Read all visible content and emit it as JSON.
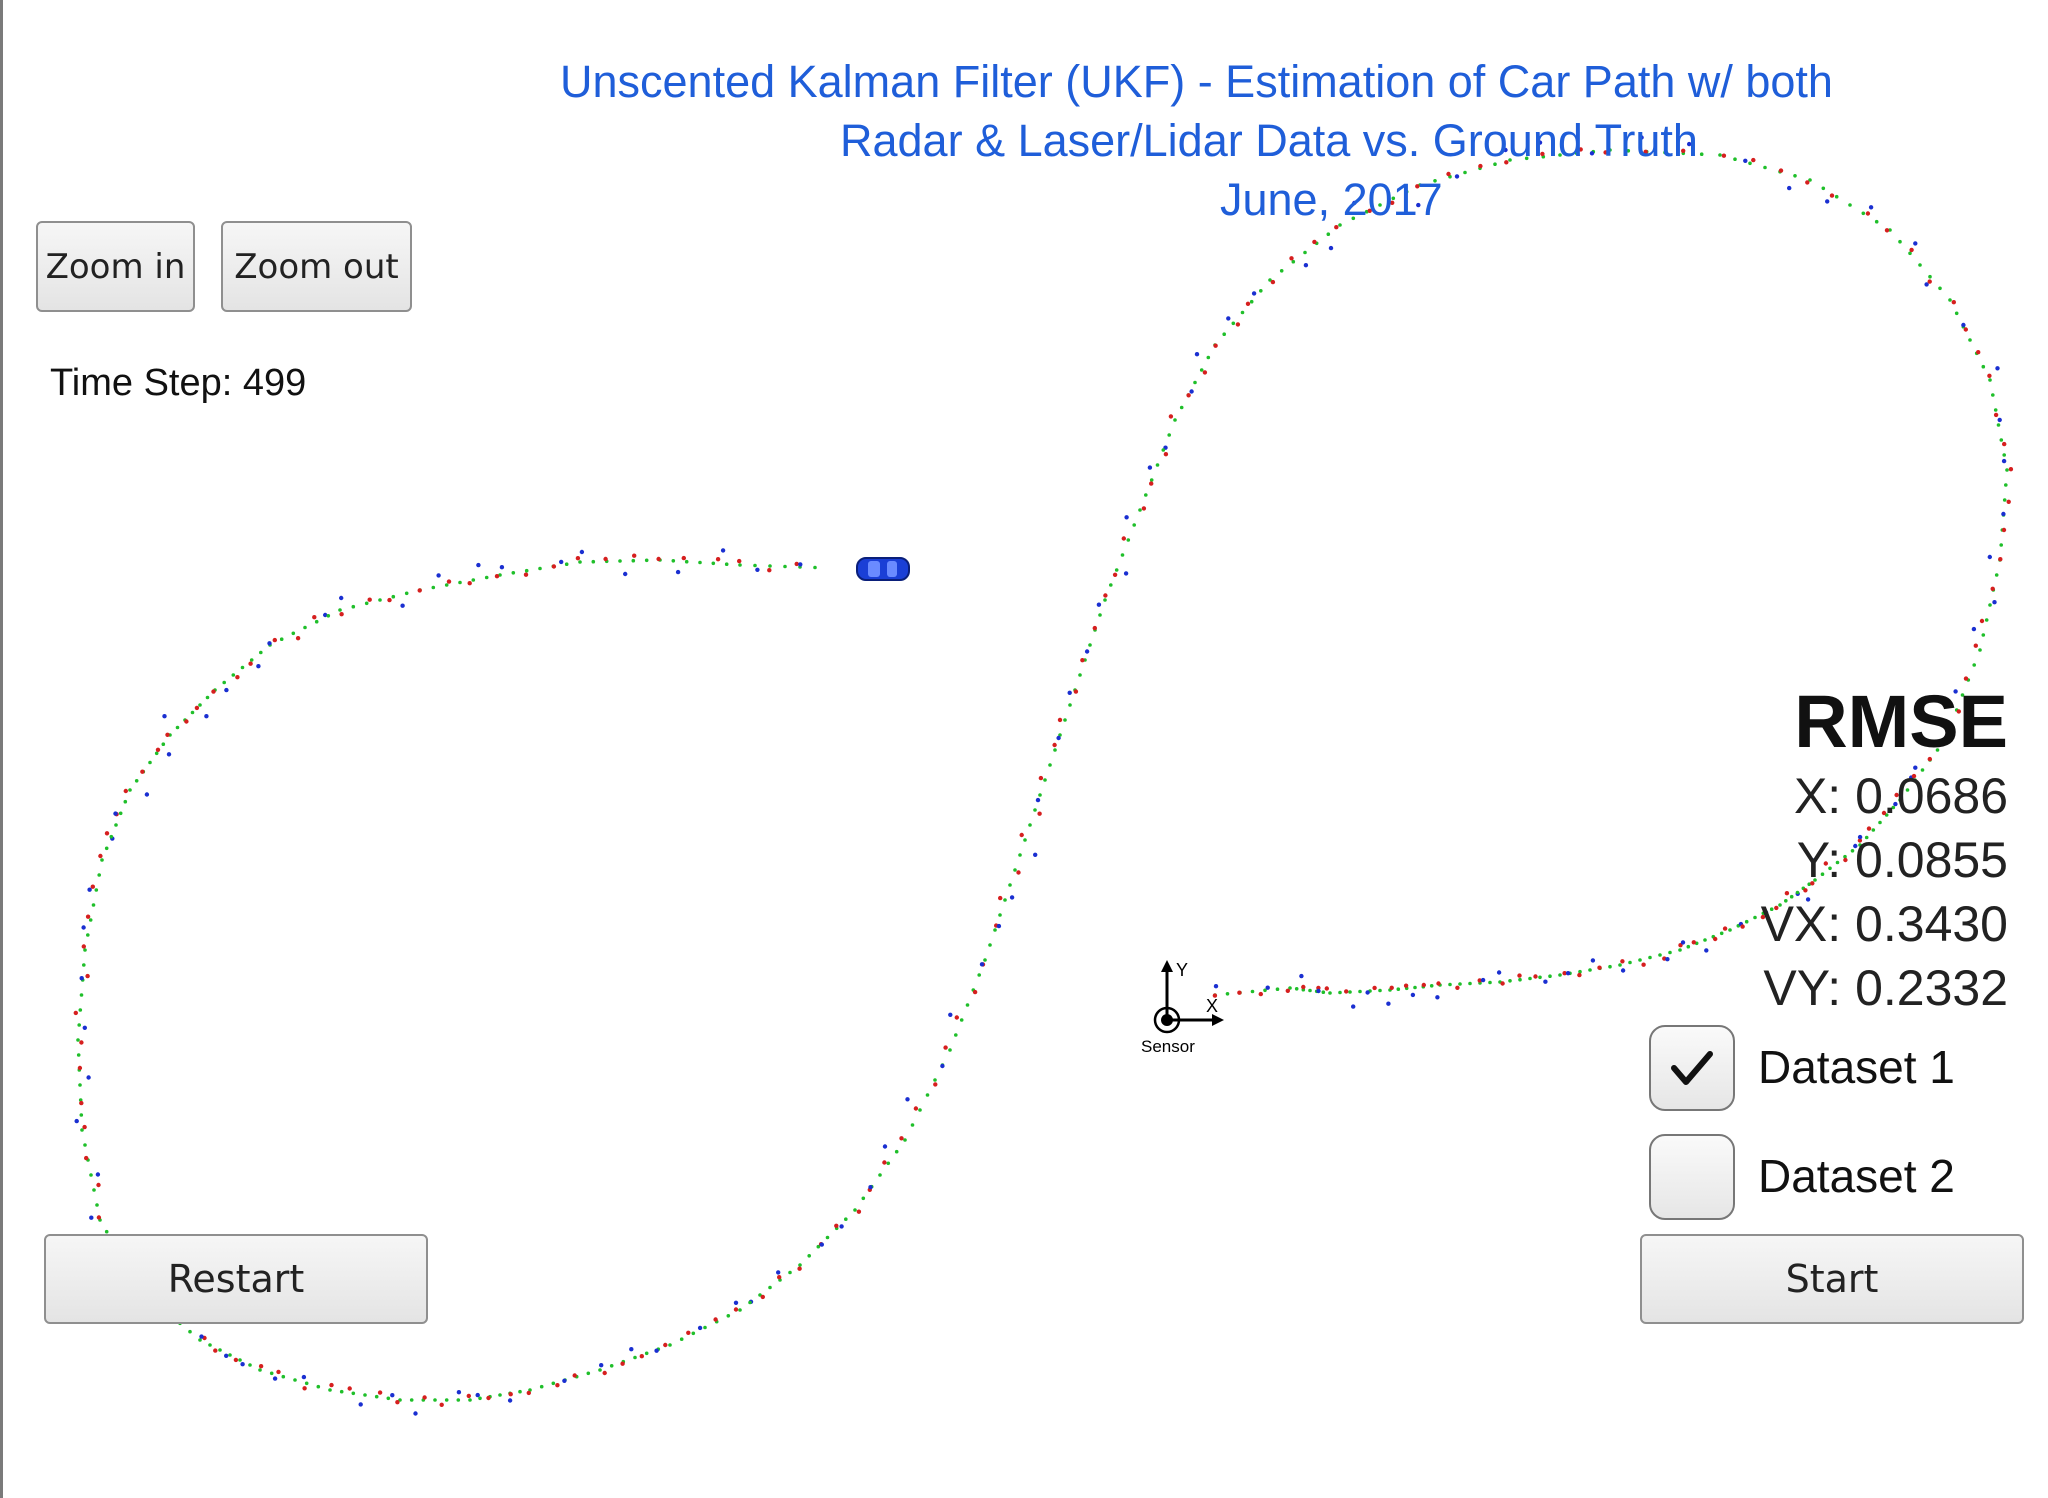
{
  "title": {
    "line1": "Unscented Kalman Filter (UKF) - Estimation of Car Path w/ both",
    "line2": "Radar & Laser/Lidar Data vs. Ground Truth",
    "line3": "June, 2017"
  },
  "controls": {
    "zoom_in": "Zoom in",
    "zoom_out": "Zoom out",
    "restart": "Restart",
    "start": "Start"
  },
  "time_step": "Time Step: 499",
  "rmse": {
    "heading": "RMSE",
    "x": "X: 0.0686",
    "y": "Y: 0.0855",
    "vx": "VX: 0.3430",
    "vy": "VY: 0.2332"
  },
  "datasets": [
    {
      "label": "Dataset 1",
      "checked": true
    },
    {
      "label": "Dataset 2",
      "checked": false
    }
  ],
  "sensor": {
    "label": "Sensor",
    "axis_x": "X",
    "axis_y": "Y"
  },
  "colors": {
    "ground_truth": "#1fbf2a",
    "lidar": "#d61f1f",
    "radar": "#1a2fd1",
    "car": "#1a3fd6",
    "title": "#1f5ed9"
  },
  "car_icon": "car-icon"
}
